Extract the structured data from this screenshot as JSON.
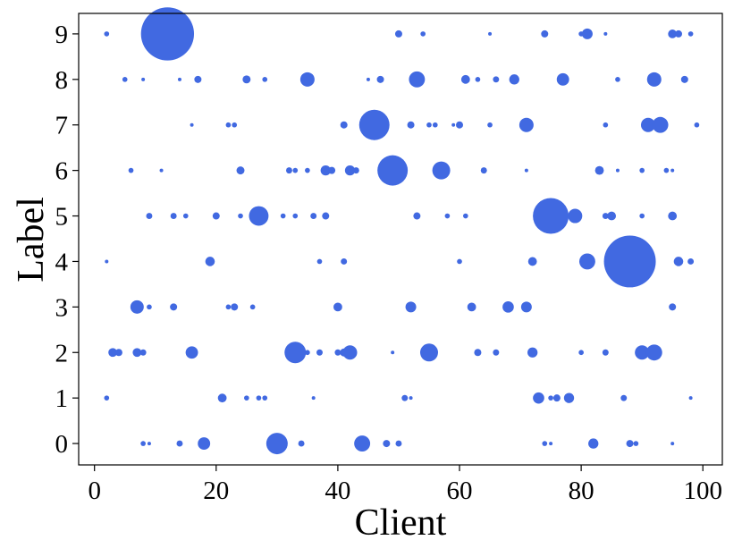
{
  "chart_data": {
    "type": "scatter",
    "xlabel": "Client",
    "ylabel": "Label",
    "xlim": [
      -2.6,
      103.2
    ],
    "ylim": [
      -0.47,
      9.45
    ],
    "xticks": [
      0,
      20,
      40,
      60,
      80,
      100
    ],
    "yticks": [
      0,
      1,
      2,
      3,
      4,
      5,
      6,
      7,
      8,
      9
    ],
    "series": [
      {
        "color": "#4169e1",
        "x": [
          2,
          12,
          50,
          54,
          65,
          74,
          80,
          81,
          84,
          95,
          96,
          98,
          5,
          8,
          14,
          17,
          25,
          28,
          35,
          45,
          47,
          53,
          61,
          63,
          66,
          69,
          77,
          86,
          92,
          97,
          16,
          22,
          23,
          41,
          46,
          52,
          55,
          56,
          59,
          60,
          65,
          71,
          84,
          91,
          93,
          99,
          6,
          11,
          24,
          32,
          33,
          35,
          38,
          39,
          42,
          43,
          49,
          57,
          64,
          71,
          83,
          86,
          90,
          94,
          95,
          9,
          13,
          15,
          20,
          24,
          27,
          31,
          33,
          36,
          38,
          53,
          58,
          61,
          75,
          79,
          84,
          85,
          90,
          95,
          2,
          19,
          37,
          41,
          60,
          72,
          81,
          88,
          96,
          98,
          7,
          9,
          13,
          22,
          23,
          26,
          40,
          52,
          62,
          68,
          71,
          95,
          3,
          4,
          7,
          8,
          16,
          33,
          35,
          37,
          40,
          41,
          42,
          49,
          55,
          63,
          66,
          72,
          80,
          84,
          90,
          92,
          2,
          21,
          25,
          27,
          28,
          36,
          51,
          52,
          73,
          75,
          76,
          78,
          87,
          98,
          8,
          9,
          14,
          18,
          30,
          34,
          44,
          48,
          50,
          74,
          75,
          82,
          88,
          89,
          95
        ],
        "y": [
          9,
          9,
          9,
          9,
          9,
          9,
          9,
          9,
          9,
          9,
          9,
          9,
          8,
          8,
          8,
          8,
          8,
          8,
          8,
          8,
          8,
          8,
          8,
          8,
          8,
          8,
          8,
          8,
          8,
          8,
          7,
          7,
          7,
          7,
          7,
          7,
          7,
          7,
          7,
          7,
          7,
          7,
          7,
          7,
          7,
          7,
          6,
          6,
          6,
          6,
          6,
          6,
          6,
          6,
          6,
          6,
          6,
          6,
          6,
          6,
          6,
          6,
          6,
          6,
          6,
          5,
          5,
          5,
          5,
          5,
          5,
          5,
          5,
          5,
          5,
          5,
          5,
          5,
          5,
          5,
          5,
          5,
          5,
          5,
          4,
          4,
          4,
          4,
          4,
          4,
          4,
          4,
          4,
          4,
          3,
          3,
          3,
          3,
          3,
          3,
          3,
          3,
          3,
          3,
          3,
          3,
          2,
          2,
          2,
          2,
          2,
          2,
          2,
          2,
          2,
          2,
          2,
          2,
          2,
          2,
          2,
          2,
          2,
          2,
          2,
          2,
          1,
          1,
          1,
          1,
          1,
          1,
          1,
          1,
          1,
          1,
          1,
          1,
          1,
          1,
          0,
          0,
          0,
          0,
          0,
          0,
          0,
          0,
          0,
          0,
          0,
          0,
          0,
          0,
          0
        ],
        "sizes": [
          2,
          220,
          4,
          2,
          1,
          4,
          2,
          9,
          1,
          6,
          4,
          2,
          2,
          1,
          1,
          4,
          5,
          2,
          16,
          1,
          4,
          20,
          6,
          2,
          3,
          8,
          12,
          2,
          16,
          4,
          1,
          2,
          2,
          4,
          72,
          4,
          2,
          2,
          1,
          4,
          2,
          16,
          2,
          16,
          20,
          2,
          2,
          1,
          5,
          3,
          2,
          2,
          8,
          4,
          8,
          3,
          72,
          25,
          3,
          1,
          6,
          1,
          2,
          2,
          1,
          3,
          3,
          2,
          4,
          2,
          30,
          2,
          2,
          3,
          4,
          4,
          2,
          2,
          100,
          16,
          3,
          6,
          2,
          6,
          1,
          7,
          2,
          3,
          2,
          6,
          20,
          210,
          7,
          3,
          14,
          2,
          4,
          2,
          4,
          2,
          6,
          9,
          6,
          10,
          9,
          4,
          6,
          4,
          6,
          3,
          12,
          36,
          2,
          3,
          3,
          5,
          16,
          1,
          25,
          4,
          3,
          8,
          2,
          3,
          16,
          20,
          2,
          6,
          2,
          2,
          2,
          1,
          3,
          1,
          10,
          2,
          4,
          8,
          3,
          1,
          2,
          1,
          3,
          12,
          36,
          3,
          20,
          4,
          3,
          2,
          1,
          8,
          4,
          2,
          1
        ]
      }
    ]
  }
}
